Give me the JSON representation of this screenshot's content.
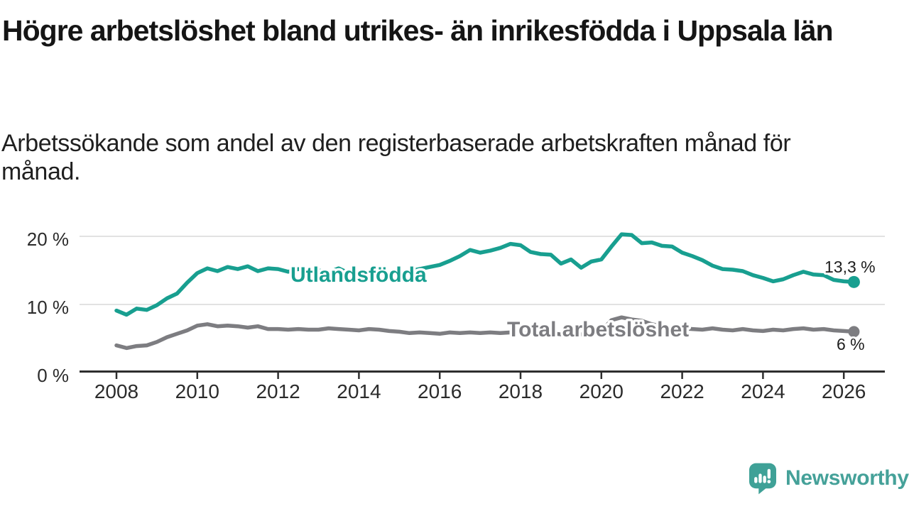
{
  "header": {
    "title": "Högre arbetslöshet bland utrikes- än inrikesfödda i Uppsala län",
    "subtitle": "Arbetssökande som andel av den registerbaserade arbetskraften månad för månad."
  },
  "chart_data": {
    "type": "line",
    "title": "Högre arbetslöshet bland utrikes- än inrikesfödda i Uppsala län",
    "subtitle": "Arbetssökande som andel av den registerbaserade arbetskraften månad för månad.",
    "unit": "%",
    "x_start": 2008.0,
    "x_step": 0.25,
    "xlim": [
      2007.1,
      2027.0
    ],
    "ylim": [
      0,
      22
    ],
    "grid": "horizontal",
    "legend_position": "inline-labels",
    "xticks": [
      {
        "value": 2008,
        "label": "2008"
      },
      {
        "value": 2010,
        "label": "2010"
      },
      {
        "value": 2012,
        "label": "2012"
      },
      {
        "value": 2014,
        "label": "2014"
      },
      {
        "value": 2016,
        "label": "2016"
      },
      {
        "value": 2018,
        "label": "2018"
      },
      {
        "value": 2020,
        "label": "2020"
      },
      {
        "value": 2022,
        "label": "2022"
      },
      {
        "value": 2024,
        "label": "2024"
      },
      {
        "value": 2026,
        "label": "2026"
      }
    ],
    "yticks": [
      {
        "value": 0,
        "label": "0 %"
      },
      {
        "value": 10,
        "label": "10 %"
      },
      {
        "value": 20,
        "label": "20 %"
      }
    ],
    "series": [
      {
        "name": "Utlandsfödda",
        "color": "#189f90",
        "end_label": "13,3 %",
        "last_value": 13.3,
        "values": [
          9.1,
          8.5,
          9.4,
          9.2,
          9.9,
          10.9,
          11.6,
          13.2,
          14.6,
          15.3,
          14.9,
          15.5,
          15.2,
          15.6,
          14.9,
          15.3,
          15.2,
          14.8,
          15.2,
          14.8,
          15.0,
          14.7,
          15.3,
          14.6,
          14.8,
          14.4,
          14.7,
          14.3,
          14.6,
          14.9,
          15.2,
          15.5,
          15.8,
          16.4,
          17.1,
          18.0,
          17.6,
          17.9,
          18.3,
          18.9,
          18.7,
          17.7,
          17.4,
          17.3,
          16.0,
          16.6,
          15.4,
          16.3,
          16.6,
          18.5,
          20.3,
          20.2,
          19.0,
          19.1,
          18.6,
          18.5,
          17.6,
          17.1,
          16.5,
          15.7,
          15.2,
          15.1,
          14.9,
          14.3,
          13.9,
          13.4,
          13.7,
          14.3,
          14.8,
          14.4,
          14.3,
          13.6,
          13.4,
          13.3
        ]
      },
      {
        "name": "Total arbetslöshet",
        "color": "#7d7d81",
        "end_label": "6 %",
        "last_value": 6,
        "values": [
          4.0,
          3.6,
          3.9,
          4.0,
          4.5,
          5.2,
          5.7,
          6.2,
          6.9,
          7.1,
          6.8,
          6.9,
          6.8,
          6.6,
          6.8,
          6.4,
          6.4,
          6.3,
          6.4,
          6.3,
          6.3,
          6.5,
          6.4,
          6.3,
          6.2,
          6.4,
          6.3,
          6.1,
          6.0,
          5.8,
          5.9,
          5.8,
          5.7,
          5.9,
          5.8,
          5.9,
          5.8,
          5.9,
          5.8,
          5.9,
          5.9,
          5.7,
          5.6,
          5.8,
          5.6,
          5.7,
          5.6,
          5.9,
          6.1,
          7.7,
          8.1,
          7.8,
          7.6,
          7.1,
          6.8,
          6.6,
          6.5,
          6.4,
          6.3,
          6.5,
          6.3,
          6.2,
          6.4,
          6.2,
          6.1,
          6.3,
          6.2,
          6.4,
          6.5,
          6.3,
          6.4,
          6.2,
          6.1,
          6.0
        ]
      }
    ]
  },
  "colors": {
    "accent_teal": "#189f90",
    "series_gray": "#7d7d81",
    "gridline": "#e2e2e2",
    "axis": "#2e2e2e",
    "brand_teal": "#45a199"
  },
  "footer": {
    "brand": "Newsworthy"
  }
}
